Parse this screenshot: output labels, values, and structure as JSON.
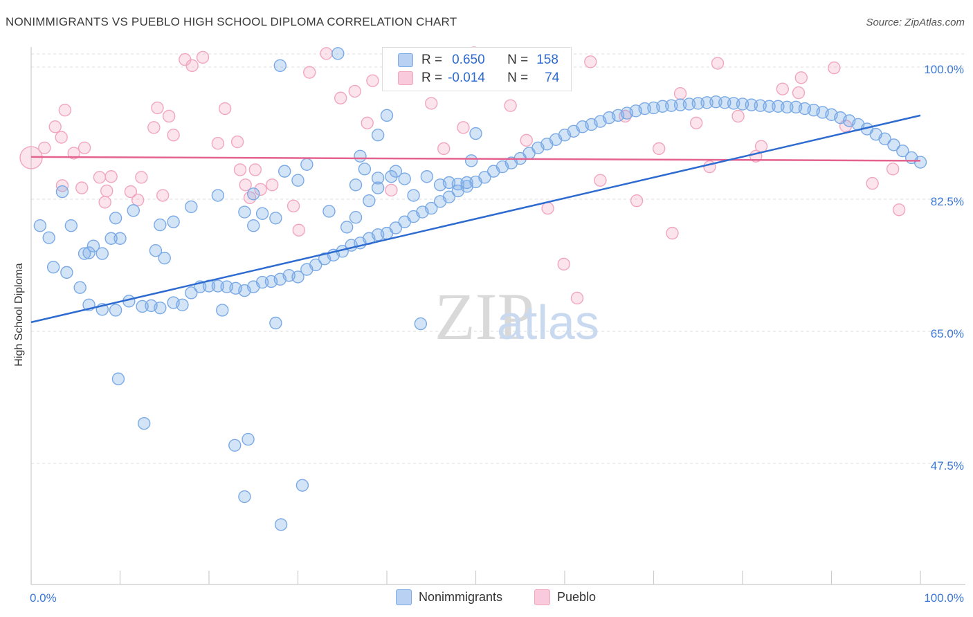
{
  "title": "NONIMMIGRANTS VS PUEBLO HIGH SCHOOL DIPLOMA CORRELATION CHART",
  "source": "Source: ZipAtlas.com",
  "watermark": {
    "zip": "ZIP",
    "atlas": "atlas"
  },
  "legend": {
    "row1": {
      "r_label": "R =",
      "r_value": "0.650",
      "n_label": "N =",
      "n_value": "158"
    },
    "row2": {
      "r_label": "R =",
      "r_value": "-0.014",
      "n_label": "N =",
      "n_value": "74"
    }
  },
  "bottom_legend": {
    "series1": "Nonimmigrants",
    "series2": "Pueblo"
  },
  "colors": {
    "blue": "#7aaae6",
    "blue_line": "#2d6bd0",
    "pink": "#f1a6bf",
    "pink_line": "#e4628f",
    "tick_text": "#3b78d6"
  },
  "chart_data": {
    "type": "scatter",
    "title": "NONIMMIGRANTS VS PUEBLO HIGH SCHOOL DIPLOMA CORRELATION CHART",
    "xlabel": "",
    "ylabel": "High School Diploma",
    "xlim": [
      0,
      100
    ],
    "ylim": [
      32,
      102
    ],
    "x_tick_labels": [
      "0.0%",
      "100.0%"
    ],
    "y_ticks": [
      100,
      82.5,
      65,
      47.5
    ],
    "y_tick_labels": [
      "100.0%",
      "82.5%",
      "65.0%",
      "47.5%"
    ],
    "grid": true,
    "series": [
      {
        "name": "Nonimmigrants",
        "r": 0.65,
        "n": 158,
        "trend": [
          [
            0,
            66.2
          ],
          [
            100,
            93.6
          ]
        ],
        "points": [
          [
            34.5,
            101.8
          ],
          [
            28,
            100.2
          ],
          [
            40,
            93.6
          ],
          [
            39,
            91
          ],
          [
            37,
            88.2
          ],
          [
            37.5,
            86.5
          ],
          [
            31,
            87.1
          ],
          [
            28.5,
            86.2
          ],
          [
            25,
            83.2
          ],
          [
            36.5,
            84.4
          ],
          [
            39,
            85.3
          ],
          [
            40.5,
            85.5
          ],
          [
            42,
            85.2
          ],
          [
            44.5,
            85.5
          ],
          [
            47,
            84.7
          ],
          [
            49,
            84.7
          ],
          [
            50,
            91.2
          ],
          [
            49.5,
            87.6
          ],
          [
            48,
            84.5
          ],
          [
            46,
            84.4
          ],
          [
            43,
            83
          ],
          [
            41,
            86.2
          ],
          [
            39,
            84
          ],
          [
            38,
            82.3
          ],
          [
            36.5,
            80.1
          ],
          [
            35.5,
            78.8
          ],
          [
            33.5,
            80.9
          ],
          [
            30,
            85
          ],
          [
            27.5,
            80
          ],
          [
            26,
            80.6
          ],
          [
            25,
            79
          ],
          [
            24,
            80.8
          ],
          [
            21,
            83
          ],
          [
            18,
            81.5
          ],
          [
            16,
            79.5
          ],
          [
            15,
            74.7
          ],
          [
            14,
            75.7
          ],
          [
            14.5,
            79.1
          ],
          [
            11.5,
            81
          ],
          [
            10,
            77.3
          ],
          [
            9,
            77.3
          ],
          [
            9.5,
            80
          ],
          [
            7,
            76.3
          ],
          [
            8,
            75.3
          ],
          [
            6,
            75.3
          ],
          [
            6.5,
            75.4
          ],
          [
            4.5,
            79
          ],
          [
            3.5,
            83.5
          ],
          [
            2,
            77.4
          ],
          [
            1,
            79
          ],
          [
            2.5,
            73.5
          ],
          [
            4,
            72.8
          ],
          [
            5.5,
            70.8
          ],
          [
            6.5,
            68.5
          ],
          [
            8,
            67.9
          ],
          [
            9.5,
            67.8
          ],
          [
            11,
            69
          ],
          [
            12.5,
            68.3
          ],
          [
            13.5,
            68.4
          ],
          [
            14.5,
            68.1
          ],
          [
            16,
            68.8
          ],
          [
            17,
            68.5
          ],
          [
            18,
            70.1
          ],
          [
            19,
            70.9
          ],
          [
            20,
            71
          ],
          [
            21,
            71
          ],
          [
            22,
            70.9
          ],
          [
            23,
            70.7
          ],
          [
            24,
            70.4
          ],
          [
            25,
            70.9
          ],
          [
            26,
            71.5
          ],
          [
            27,
            71.6
          ],
          [
            28,
            71.9
          ],
          [
            29,
            72.4
          ],
          [
            30,
            72.2
          ],
          [
            31,
            73.2
          ],
          [
            32,
            73.8
          ],
          [
            33,
            74.6
          ],
          [
            34,
            75.1
          ],
          [
            35,
            75.6
          ],
          [
            36,
            76.4
          ],
          [
            37,
            76.7
          ],
          [
            38,
            77.3
          ],
          [
            39,
            77.8
          ],
          [
            40,
            78
          ],
          [
            41,
            78.7
          ],
          [
            42,
            79.5
          ],
          [
            43,
            80.2
          ],
          [
            44,
            80.8
          ],
          [
            45,
            81.3
          ],
          [
            46,
            82.2
          ],
          [
            47,
            82.8
          ],
          [
            48,
            83.6
          ],
          [
            49,
            84.2
          ],
          [
            50,
            84.8
          ],
          [
            51,
            85.4
          ],
          [
            52,
            86.2
          ],
          [
            53,
            86.8
          ],
          [
            54,
            87.3
          ],
          [
            55,
            87.9
          ],
          [
            56,
            88.6
          ],
          [
            57,
            89.3
          ],
          [
            58,
            89.8
          ],
          [
            59,
            90.4
          ],
          [
            60,
            91
          ],
          [
            61,
            91.5
          ],
          [
            62,
            92.1
          ],
          [
            63,
            92.4
          ],
          [
            64,
            92.8
          ],
          [
            65,
            93.3
          ],
          [
            66,
            93.6
          ],
          [
            67,
            93.9
          ],
          [
            68,
            94.2
          ],
          [
            69,
            94.5
          ],
          [
            70,
            94.6
          ],
          [
            71,
            94.8
          ],
          [
            72,
            94.9
          ],
          [
            73,
            95
          ],
          [
            74,
            95.1
          ],
          [
            75,
            95.2
          ],
          [
            76,
            95.3
          ],
          [
            77,
            95.4
          ],
          [
            78,
            95.3
          ],
          [
            79,
            95.2
          ],
          [
            80,
            95.1
          ],
          [
            81,
            95
          ],
          [
            82,
            94.9
          ],
          [
            83,
            94.8
          ],
          [
            84,
            94.8
          ],
          [
            85,
            94.7
          ],
          [
            86,
            94.7
          ],
          [
            87,
            94.5
          ],
          [
            88,
            94.3
          ],
          [
            89,
            94
          ],
          [
            90,
            93.7
          ],
          [
            91,
            93.3
          ],
          [
            92,
            92.9
          ],
          [
            93,
            92.4
          ],
          [
            94,
            91.8
          ],
          [
            95,
            91.1
          ],
          [
            96,
            90.5
          ],
          [
            97,
            89.7
          ],
          [
            98,
            88.9
          ],
          [
            99,
            88
          ],
          [
            100,
            87.4
          ],
          [
            9.8,
            58.7
          ],
          [
            12.7,
            52.8
          ],
          [
            22.9,
            49.9
          ],
          [
            24.4,
            50.7
          ],
          [
            24,
            43.1
          ],
          [
            30.5,
            44.6
          ],
          [
            28.1,
            39.4
          ],
          [
            43.8,
            66
          ],
          [
            27.5,
            66.1
          ],
          [
            21.5,
            67.8
          ]
        ]
      },
      {
        "name": "Pueblo",
        "r": -0.014,
        "n": 74,
        "trend": [
          [
            0,
            88.1
          ],
          [
            100,
            87.6
          ]
        ],
        "points": [
          [
            0,
            88
          ],
          [
            1.5,
            89.3
          ],
          [
            2.7,
            92.1
          ],
          [
            3.4,
            90.7
          ],
          [
            3.5,
            84.3
          ],
          [
            3.8,
            94.3
          ],
          [
            4.8,
            88.6
          ],
          [
            5.7,
            84
          ],
          [
            6,
            89.3
          ],
          [
            7.7,
            85.4
          ],
          [
            8.5,
            83.6
          ],
          [
            8.3,
            82.1
          ],
          [
            9,
            85.5
          ],
          [
            11.2,
            83.5
          ],
          [
            12,
            82.4
          ],
          [
            12.4,
            85.4
          ],
          [
            13.8,
            92
          ],
          [
            14.2,
            94.6
          ],
          [
            14.8,
            83
          ],
          [
            15.5,
            93.5
          ],
          [
            16,
            91
          ],
          [
            17.3,
            101
          ],
          [
            18.1,
            100.2
          ],
          [
            19.3,
            101.3
          ],
          [
            21,
            89.9
          ],
          [
            21.8,
            94.5
          ],
          [
            23.2,
            90.1
          ],
          [
            23.5,
            86.4
          ],
          [
            24.1,
            84.4
          ],
          [
            24.6,
            82.7
          ],
          [
            25.2,
            86.4
          ],
          [
            25.8,
            83.8
          ],
          [
            27.1,
            84.4
          ],
          [
            29.5,
            81.6
          ],
          [
            30.1,
            78.4
          ],
          [
            31.3,
            99.3
          ],
          [
            33.2,
            101.8
          ],
          [
            34.8,
            95.9
          ],
          [
            36.4,
            96.8
          ],
          [
            37.8,
            92.6
          ],
          [
            38.4,
            98.2
          ],
          [
            40.5,
            83.7
          ],
          [
            44.1,
            101.5
          ],
          [
            45,
            95.2
          ],
          [
            46.4,
            89.2
          ],
          [
            48.6,
            92
          ],
          [
            49.8,
            101.9
          ],
          [
            51.9,
            99.8
          ],
          [
            53.9,
            94.9
          ],
          [
            55.7,
            90.3
          ],
          [
            58.1,
            81.3
          ],
          [
            59.9,
            73.9
          ],
          [
            61.4,
            69.4
          ],
          [
            62.9,
            100.7
          ],
          [
            64,
            85
          ],
          [
            66.8,
            93.5
          ],
          [
            68.1,
            82.3
          ],
          [
            70.6,
            89.2
          ],
          [
            72.1,
            78
          ],
          [
            73,
            96.5
          ],
          [
            74.8,
            92.6
          ],
          [
            76.3,
            86.8
          ],
          [
            77.2,
            100.5
          ],
          [
            79.5,
            93.5
          ],
          [
            81.5,
            88.2
          ],
          [
            82.1,
            89.5
          ],
          [
            84.5,
            97.1
          ],
          [
            86.3,
            96.6
          ],
          [
            86.6,
            98.6
          ],
          [
            90.3,
            99.9
          ],
          [
            91.6,
            92.2
          ],
          [
            94.6,
            84.6
          ],
          [
            96.9,
            86.5
          ],
          [
            97.6,
            81.1
          ]
        ]
      }
    ]
  }
}
